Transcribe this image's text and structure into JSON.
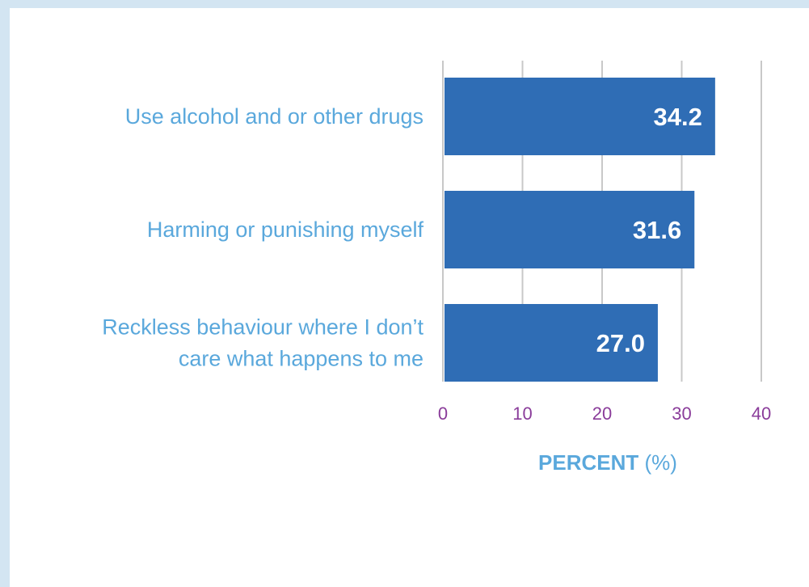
{
  "chart_data": {
    "type": "bar",
    "orientation": "horizontal",
    "categories": [
      [
        "Use alcohol and or other drugs"
      ],
      [
        "Harming or punishing myself"
      ],
      [
        "Reckless behaviour where I don’t",
        "care what happens to me"
      ]
    ],
    "values": [
      34.2,
      31.6,
      27.0
    ],
    "data_labels": [
      "34.2",
      "31.6",
      "27.0"
    ],
    "xlim": [
      0,
      40
    ],
    "x_ticks": [
      0,
      10,
      20,
      30,
      40
    ],
    "x_tick_labels": [
      "0",
      "10",
      "20",
      "30",
      "40"
    ],
    "xlabel_bold": "PERCENT",
    "xlabel_rest": " (%)",
    "grid": "vertical",
    "colors": {
      "bar": "#2f6db5",
      "category_text": "#5aa8dc",
      "tick_text": "#8a3c9a",
      "gridline": "#c8c8c8",
      "data_label": "#ffffff",
      "background": "#ffffff",
      "border": "#d3e5f2"
    }
  }
}
